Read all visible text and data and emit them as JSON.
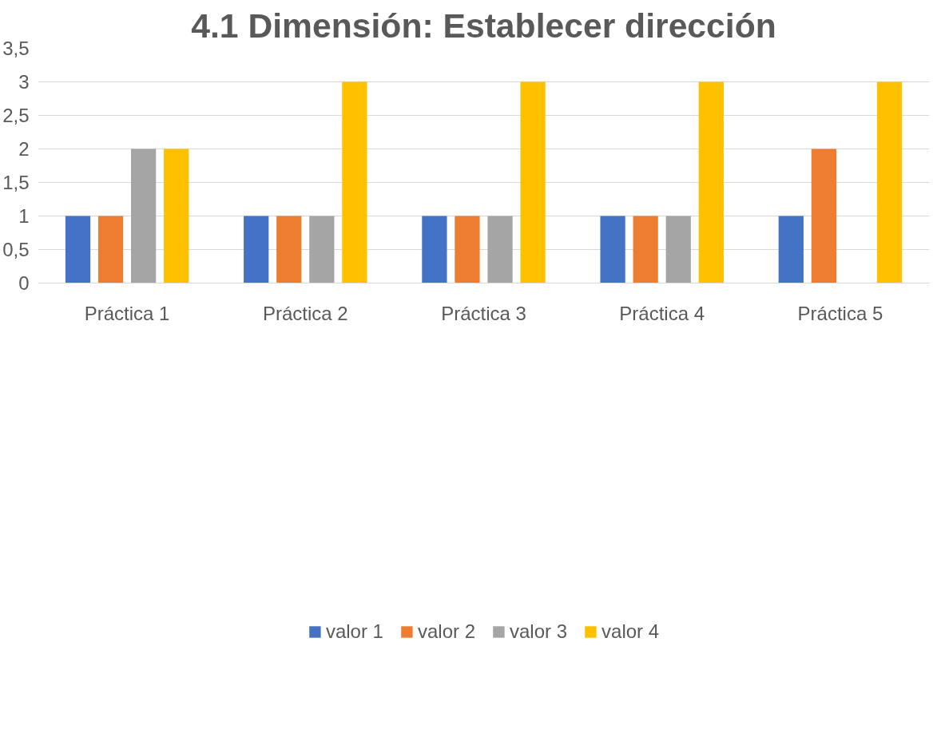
{
  "chart_data": {
    "type": "bar",
    "title": "4.1 Dimensión: Establecer dirección",
    "categories": [
      "Práctica 1",
      "Práctica 2",
      "Práctica 3",
      "Práctica 4",
      "Práctica 5"
    ],
    "series": [
      {
        "name": "valor 1",
        "color": "#4472c4",
        "values": [
          1,
          1,
          1,
          1,
          1
        ]
      },
      {
        "name": "valor 2",
        "color": "#ed7d31",
        "values": [
          1,
          1,
          1,
          1,
          2
        ]
      },
      {
        "name": "valor 3",
        "color": "#a5a5a5",
        "values": [
          2,
          1,
          1,
          1,
          0
        ]
      },
      {
        "name": "valor 4",
        "color": "#ffc000",
        "values": [
          2,
          3,
          3,
          3,
          3
        ]
      }
    ],
    "ylim": [
      0,
      3.5
    ],
    "yticks": [
      0,
      {
        "value": 0.5,
        "label": "0,5"
      },
      1,
      {
        "value": 1.5,
        "label": "1,5"
      },
      2,
      {
        "value": 2.5,
        "label": "2,5"
      },
      3,
      {
        "value": 3.5,
        "label": "3,5"
      }
    ],
    "grid": "y",
    "legend": "bottom"
  }
}
